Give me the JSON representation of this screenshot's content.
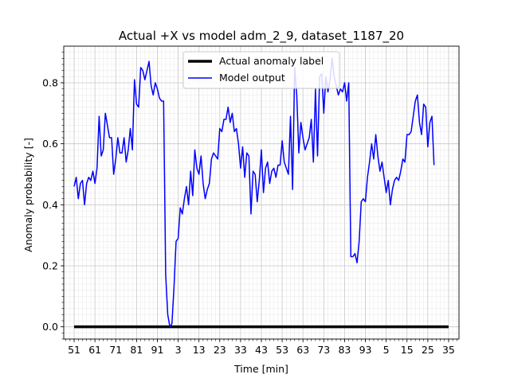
{
  "chart_data": {
    "type": "line",
    "title": "Actual +X vs model adm_2_9, dataset_1187_20",
    "xlabel": "Time [min]",
    "ylabel": "Anomaly probability [-]",
    "xtick_labels": [
      "51",
      "61",
      "71",
      "81",
      "91",
      "3",
      "13",
      "23",
      "33",
      "43",
      "53",
      "63",
      "73",
      "83",
      "93",
      "5",
      "15",
      "25",
      "35"
    ],
    "ytick_labels": [
      "0.0",
      "0.2",
      "0.4",
      "0.6",
      "0.8"
    ],
    "ylim": [
      -0.04,
      0.92
    ],
    "grid": true,
    "legend_position": "top-center",
    "series": [
      {
        "name": "Actual anomaly label",
        "color": "#000000",
        "x": [
          0,
          180
        ],
        "values": [
          0.0,
          0.0
        ]
      },
      {
        "name": "Model output",
        "color": "#0000ff",
        "values": [
          0.46,
          0.49,
          0.42,
          0.47,
          0.48,
          0.4,
          0.47,
          0.49,
          0.48,
          0.51,
          0.47,
          0.52,
          0.69,
          0.56,
          0.58,
          0.7,
          0.66,
          0.62,
          0.62,
          0.5,
          0.55,
          0.62,
          0.57,
          0.57,
          0.62,
          0.54,
          0.58,
          0.65,
          0.58,
          0.81,
          0.73,
          0.72,
          0.85,
          0.84,
          0.81,
          0.84,
          0.87,
          0.79,
          0.76,
          0.8,
          0.78,
          0.75,
          0.74,
          0.74,
          0.17,
          0.04,
          0.0,
          0.01,
          0.13,
          0.28,
          0.29,
          0.39,
          0.37,
          0.42,
          0.46,
          0.4,
          0.51,
          0.43,
          0.58,
          0.52,
          0.5,
          0.56,
          0.47,
          0.42,
          0.45,
          0.47,
          0.55,
          0.57,
          0.56,
          0.55,
          0.65,
          0.64,
          0.68,
          0.68,
          0.72,
          0.67,
          0.7,
          0.64,
          0.65,
          0.6,
          0.52,
          0.59,
          0.49,
          0.57,
          0.56,
          0.37,
          0.51,
          0.5,
          0.41,
          0.48,
          0.58,
          0.44,
          0.52,
          0.54,
          0.47,
          0.51,
          0.52,
          0.49,
          0.53,
          0.53,
          0.61,
          0.54,
          0.52,
          0.5,
          0.69,
          0.45,
          0.85,
          0.76,
          0.57,
          0.67,
          0.62,
          0.58,
          0.6,
          0.62,
          0.68,
          0.54,
          0.78,
          0.56,
          0.82,
          0.83,
          0.7,
          0.82,
          0.77,
          0.81,
          0.88,
          0.82,
          0.79,
          0.76,
          0.78,
          0.77,
          0.8,
          0.74,
          0.8,
          0.23,
          0.23,
          0.24,
          0.21,
          0.28,
          0.41,
          0.42,
          0.41,
          0.49,
          0.54,
          0.6,
          0.55,
          0.63,
          0.56,
          0.51,
          0.54,
          0.49,
          0.44,
          0.48,
          0.4,
          0.45,
          0.48,
          0.49,
          0.48,
          0.51,
          0.55,
          0.54,
          0.63,
          0.63,
          0.64,
          0.69,
          0.74,
          0.76,
          0.67,
          0.63,
          0.73,
          0.72,
          0.59,
          0.67,
          0.69,
          0.53
        ]
      }
    ]
  }
}
